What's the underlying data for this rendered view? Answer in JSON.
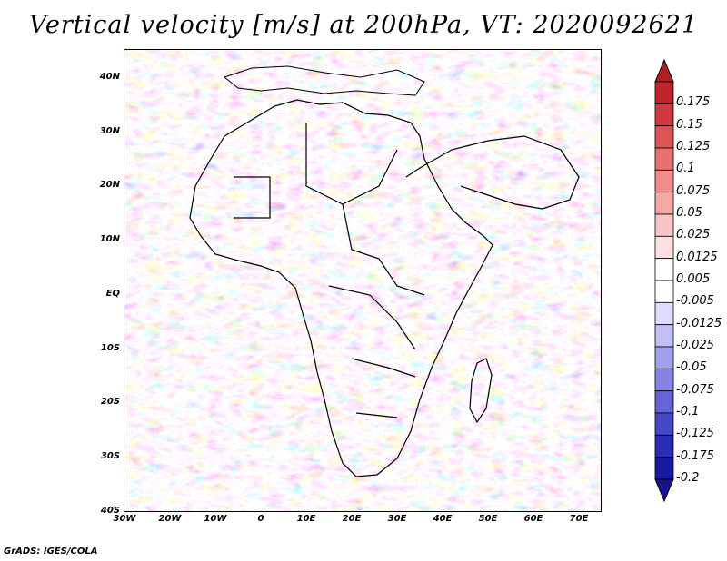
{
  "title": "Vertical velocity [m/s] at 200hPa, VT: 2020092621",
  "y_axis_labels": [
    "40N",
    "30N",
    "20N",
    "10N",
    "EQ",
    "10S",
    "20S",
    "30S",
    "40S"
  ],
  "x_axis_labels": [
    "30W",
    "20W",
    "10W",
    "0",
    "10E",
    "20E",
    "30E",
    "40E",
    "50E",
    "60E",
    "70E"
  ],
  "colorbar": {
    "labels": [
      "0.175",
      "0.15",
      "0.125",
      "0.1",
      "0.075",
      "0.05",
      "0.025",
      "0.0125",
      "0.005",
      "-0.005",
      "-0.0125",
      "-0.025",
      "-0.05",
      "-0.075",
      "-0.1",
      "-0.125",
      "-0.175",
      "-0.2"
    ],
    "colors": [
      "#c0242c",
      "#d03a3e",
      "#dc5454",
      "#e87070",
      "#f08c8c",
      "#f4a8a8",
      "#f8c4c4",
      "#fce0e0",
      "#ffffff",
      "#ffffff",
      "#dcdcfc",
      "#c0c0f4",
      "#a0a0ec",
      "#8484e4",
      "#6464d8",
      "#4646c8",
      "#2c2cb4",
      "#1a1aa0"
    ],
    "top_arrow_color": "#b02020",
    "bottom_arrow_color": "#14148c"
  },
  "footer": "GrADS: IGES/COLA"
}
